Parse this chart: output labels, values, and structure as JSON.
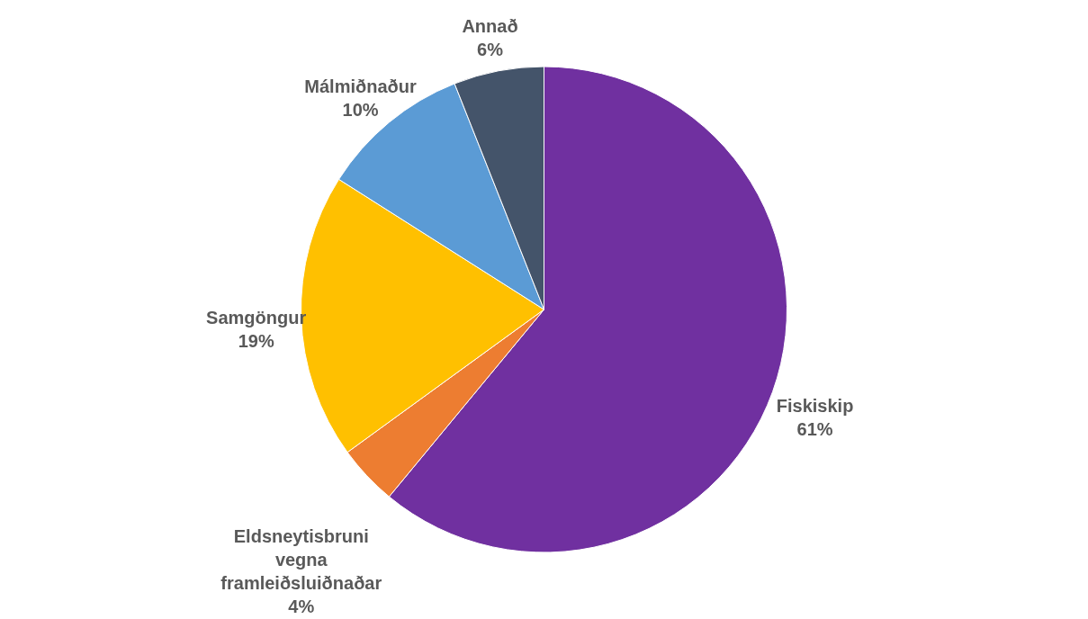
{
  "chart_data": {
    "type": "pie",
    "categories": [
      "Fiskiskip",
      "Eldsneytisbruni vegna framleiðsluiðnaðar",
      "Samgöngur",
      "Málmiðnaður",
      "Annað"
    ],
    "values": [
      61,
      4,
      19,
      10,
      6
    ],
    "value_labels": [
      "61%",
      "4%",
      "19%",
      "10%",
      "6%"
    ],
    "colors": [
      "#7030a0",
      "#ed7d31",
      "#ffc000",
      "#5b9bd5",
      "#44546a"
    ]
  }
}
